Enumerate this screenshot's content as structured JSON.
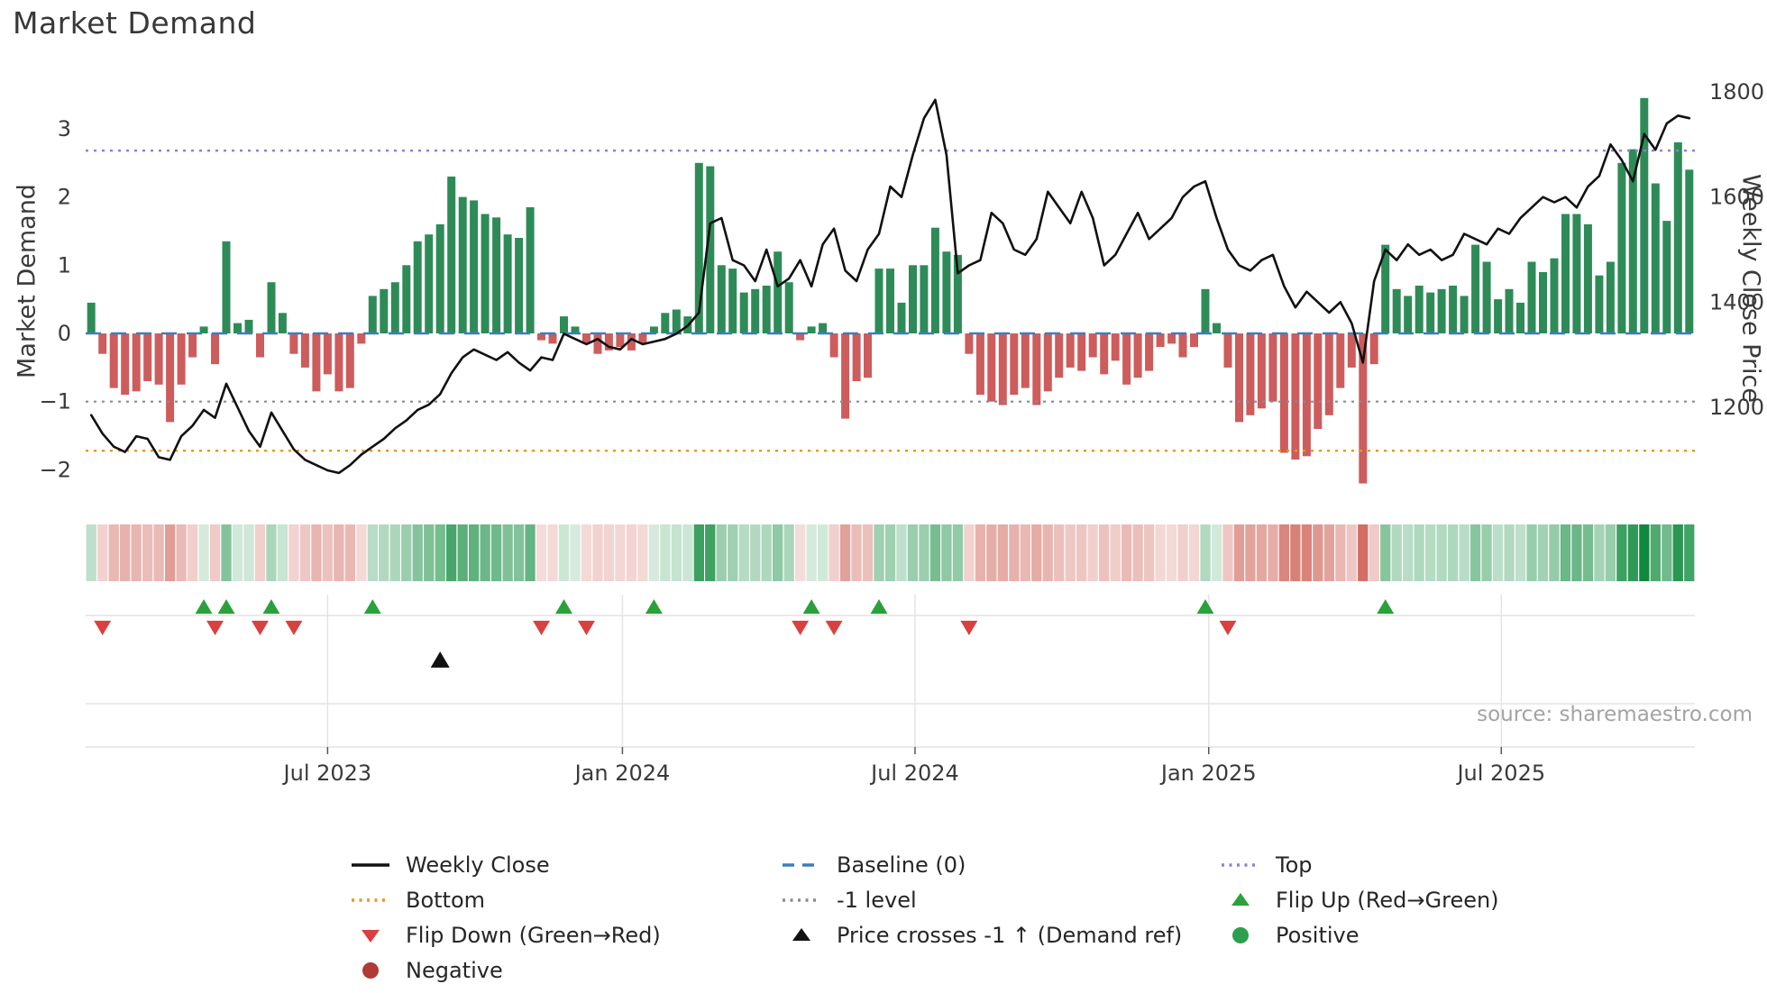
{
  "title": "Market Demand",
  "source": "source: sharemaestro.com",
  "colors": {
    "bar_positive": "#2e8b57",
    "bar_negative": "#cd5c5c",
    "price_line": "#111111",
    "baseline": "#3c7ebf",
    "top_line": "#8585d6",
    "bottom_line": "#e8941e",
    "minus1_line": "#8a8a96",
    "flip_up": "#2aa13a",
    "flip_down": "#d94040",
    "price_cross": "#111111",
    "positive_dot": "#2e9e4f",
    "negative_dot": "#b03a35",
    "heat_positive": "#0f8a3d",
    "heat_negative": "#c23a2d",
    "grid": "#e3e3e3",
    "tick_text": "#3a3a3a"
  },
  "chart_data": {
    "type": "combo",
    "description": "Weekly market-demand bars (left axis) with weekly close price line (right axis), a demand-intensity heatmap strip, and event-marker lanes for flips",
    "weeks": 143,
    "categories_note": "weekly points from early 2023 to late 2025; x tick labels below",
    "series": [
      {
        "name": "Market Demand",
        "type": "bar",
        "axis": "left",
        "values": [
          0.45,
          -0.3,
          -0.8,
          -0.9,
          -0.85,
          -0.7,
          -0.75,
          -1.3,
          -0.75,
          -0.35,
          0.1,
          -0.45,
          1.35,
          0.15,
          0.2,
          -0.35,
          0.75,
          0.3,
          -0.3,
          -0.5,
          -0.85,
          -0.6,
          -0.85,
          -0.8,
          -0.15,
          0.55,
          0.65,
          0.75,
          1.0,
          1.35,
          1.45,
          1.6,
          2.3,
          2.0,
          1.95,
          1.75,
          1.7,
          1.45,
          1.4,
          1.85,
          -0.1,
          -0.15,
          0.25,
          0.1,
          -0.15,
          -0.3,
          -0.25,
          -0.2,
          -0.25,
          -0.15,
          0.1,
          0.3,
          0.35,
          0.25,
          2.5,
          2.45,
          1.0,
          0.95,
          0.6,
          0.65,
          0.7,
          1.2,
          0.75,
          -0.1,
          0.1,
          0.15,
          -0.35,
          -1.25,
          -0.7,
          -0.65,
          0.95,
          0.95,
          0.45,
          1.0,
          1.0,
          1.55,
          1.2,
          1.15,
          -0.3,
          -0.9,
          -1.0,
          -1.05,
          -0.9,
          -0.8,
          -1.05,
          -0.85,
          -0.65,
          -0.5,
          -0.55,
          -0.35,
          -0.6,
          -0.4,
          -0.75,
          -0.65,
          -0.55,
          -0.2,
          -0.15,
          -0.35,
          -0.2,
          0.65,
          0.15,
          -0.5,
          -1.3,
          -1.2,
          -1.1,
          -1.0,
          -1.75,
          -1.85,
          -1.8,
          -1.4,
          -1.2,
          -0.8,
          -0.5,
          -2.2,
          -0.45,
          1.3,
          0.65,
          0.55,
          0.7,
          0.6,
          0.65,
          0.7,
          0.55,
          1.3,
          1.05,
          0.5,
          0.65,
          0.45,
          1.05,
          0.9,
          1.1,
          1.75,
          1.75,
          1.6,
          0.85,
          1.05,
          2.5,
          2.7,
          3.45,
          2.2,
          1.65,
          2.8,
          2.4
        ]
      },
      {
        "name": "Weekly Close",
        "type": "line",
        "axis": "right",
        "values": [
          1185,
          1150,
          1125,
          1115,
          1145,
          1140,
          1105,
          1100,
          1145,
          1165,
          1195,
          1180,
          1245,
          1200,
          1155,
          1125,
          1190,
          1155,
          1120,
          1100,
          1090,
          1080,
          1075,
          1090,
          1110,
          1125,
          1140,
          1160,
          1175,
          1195,
          1205,
          1225,
          1265,
          1295,
          1310,
          1300,
          1290,
          1305,
          1285,
          1270,
          1295,
          1290,
          1340,
          1330,
          1320,
          1330,
          1315,
          1310,
          1330,
          1320,
          1325,
          1330,
          1340,
          1355,
          1380,
          1550,
          1560,
          1480,
          1470,
          1440,
          1500,
          1430,
          1445,
          1480,
          1430,
          1510,
          1540,
          1460,
          1440,
          1500,
          1530,
          1620,
          1600,
          1680,
          1750,
          1785,
          1680,
          1455,
          1470,
          1480,
          1570,
          1550,
          1500,
          1490,
          1520,
          1610,
          1580,
          1550,
          1610,
          1560,
          1470,
          1490,
          1530,
          1570,
          1520,
          1540,
          1560,
          1600,
          1620,
          1630,
          1560,
          1500,
          1470,
          1460,
          1480,
          1490,
          1430,
          1390,
          1420,
          1400,
          1380,
          1400,
          1360,
          1285,
          1440,
          1500,
          1480,
          1510,
          1490,
          1500,
          1480,
          1490,
          1530,
          1520,
          1510,
          1540,
          1530,
          1560,
          1580,
          1600,
          1590,
          1600,
          1580,
          1620,
          1640,
          1700,
          1670,
          1630,
          1720,
          1690,
          1740,
          1755,
          1750
        ]
      }
    ],
    "levels": {
      "baseline": 0,
      "top": 2.68,
      "bottom": -1.72,
      "minus1": -1
    },
    "flip_up_weeks": [
      10,
      12,
      16,
      25,
      42,
      50,
      64,
      70,
      99,
      115
    ],
    "flip_down_weeks": [
      1,
      11,
      15,
      18,
      40,
      44,
      63,
      66,
      78,
      101
    ],
    "price_cross_weeks": [
      31
    ],
    "x_ticks": [
      {
        "label": "Jul 2023",
        "week": 21.0
      },
      {
        "label": "Jan 2024",
        "week": 47.2
      },
      {
        "label": "Jul 2024",
        "week": 73.2
      },
      {
        "label": "Jan 2025",
        "week": 99.3
      },
      {
        "label": "Jul 2025",
        "week": 125.3
      }
    ],
    "left_axis": {
      "label": "Market Demand",
      "ticks": [
        3,
        2,
        1,
        0,
        -1,
        -2
      ],
      "tick_labels": [
        "3",
        "2",
        "1",
        "0",
        "−1",
        "−2"
      ],
      "range": [
        -2.32,
        3.84
      ]
    },
    "right_axis": {
      "label": "Weekly Close Price",
      "ticks": [
        1800,
        1600,
        1400,
        1200
      ],
      "range": [
        1039,
        1839
      ]
    },
    "grid": "marker panel only",
    "legend_position": "below chart, 3 columns"
  },
  "legend": {
    "columns": [
      [
        {
          "name": "weekly-close",
          "label": "Weekly Close",
          "swatch": "solid-line",
          "color": "#111111"
        },
        {
          "name": "bottom",
          "label": "Bottom",
          "swatch": "dotted-line",
          "color": "#e8941e"
        },
        {
          "name": "flip-down",
          "label": "Flip Down (Green→Red)",
          "swatch": "triangle-down",
          "color": "#d94040"
        },
        {
          "name": "negative",
          "label": "Negative",
          "swatch": "circle",
          "color": "#b03a35"
        }
      ],
      [
        {
          "name": "baseline",
          "label": "Baseline (0)",
          "swatch": "dashed-line",
          "color": "#3c7ebf"
        },
        {
          "name": "minus1-level",
          "label": "-1 level",
          "swatch": "dotted-line",
          "color": "#8a8a96"
        },
        {
          "name": "price-cross",
          "label": "Price crosses -1 ↑ (Demand ref)",
          "swatch": "triangle-up",
          "color": "#111111"
        }
      ],
      [
        {
          "name": "top",
          "label": "Top",
          "swatch": "dotted-line",
          "color": "#8585d6"
        },
        {
          "name": "flip-up",
          "label": "Flip Up (Red→Green)",
          "swatch": "triangle-up",
          "color": "#2aa13a"
        },
        {
          "name": "positive",
          "label": "Positive",
          "swatch": "circle",
          "color": "#2e9e4f"
        }
      ]
    ]
  }
}
